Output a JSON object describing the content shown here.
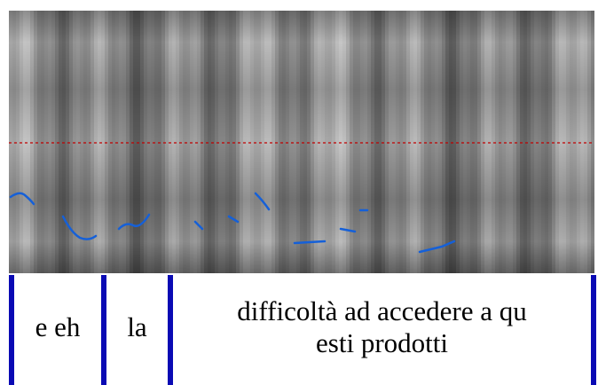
{
  "textgrid": {
    "intervals": [
      {
        "lines": [
          "e eh"
        ]
      },
      {
        "lines": [
          "la"
        ]
      },
      {
        "lines": [
          "difficoltà ad accedere a qu",
          "esti prodotti"
        ]
      }
    ]
  }
}
